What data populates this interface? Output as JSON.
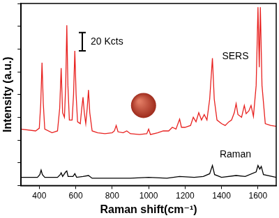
{
  "chart_data": {
    "type": "line",
    "x_label": "Raman shift(cm⁻¹)",
    "y_label": "Intensity (a.u.)",
    "xlim": [
      300,
      1700
    ],
    "xticks": [
      400,
      600,
      800,
      1000,
      1200,
      1400,
      1600
    ],
    "ylim": [
      0,
      200
    ],
    "yticks": [
      0,
      25,
      50,
      75,
      100,
      125,
      150,
      175,
      200
    ],
    "tick_labels": "x",
    "grid": false,
    "scale_bar": {
      "label": "20 Kcts",
      "value": 20
    },
    "series": [
      {
        "name": "SERS",
        "color": "#e8211f",
        "x": [
          300,
          380,
          400,
          408,
          415,
          422,
          430,
          470,
          500,
          512,
          520,
          528,
          538,
          545,
          551,
          557,
          565,
          580,
          588,
          595,
          602,
          610,
          625,
          633,
          640,
          647,
          655,
          663,
          670,
          677,
          690,
          720,
          760,
          800,
          812,
          822,
          832,
          860,
          880,
          900,
          950,
          990,
          1000,
          1010,
          1050,
          1080,
          1110,
          1130,
          1150,
          1170,
          1180,
          1200,
          1230,
          1245,
          1260,
          1275,
          1290,
          1305,
          1320,
          1335,
          1350,
          1360,
          1375,
          1400,
          1420,
          1440,
          1455,
          1470,
          1480,
          1490,
          1510,
          1525,
          1535,
          1550,
          1562,
          1575,
          1590,
          1600,
          1607,
          1613,
          1622,
          1640,
          1670,
          1700
        ],
        "values": [
          62,
          60,
          63,
          90,
          135,
          90,
          62,
          58,
          60,
          85,
          129,
          80,
          75,
          110,
          176,
          110,
          72,
          72,
          100,
          148,
          100,
          70,
          68,
          85,
          97,
          80,
          68,
          85,
          105,
          80,
          60,
          58,
          57,
          58,
          60,
          66,
          59,
          58,
          60,
          57,
          56,
          57,
          62,
          56,
          58,
          60,
          60,
          64,
          62,
          73,
          64,
          64,
          66,
          75,
          70,
          80,
          72,
          78,
          72,
          95,
          140,
          95,
          72,
          68,
          66,
          70,
          72,
          80,
          90,
          78,
          75,
          88,
          79,
          82,
          88,
          76,
          110,
          196,
          130,
          196,
          110,
          68,
          66,
          65
        ]
      },
      {
        "name": "Raman",
        "color": "#000000",
        "x": [
          300,
          390,
          403,
          410,
          417,
          430,
          500,
          515,
          520,
          528,
          545,
          551,
          558,
          585,
          595,
          605,
          640,
          670,
          690,
          800,
          900,
          1000,
          1100,
          1170,
          1250,
          1300,
          1335,
          1350,
          1362,
          1400,
          1480,
          1530,
          1590,
          1600,
          1610,
          1618,
          1630,
          1700
        ],
        "values": [
          9,
          9,
          12,
          17,
          12,
          9,
          9,
          12,
          14,
          10,
          15,
          16,
          10,
          10,
          13,
          9,
          10,
          11,
          8,
          8,
          8,
          9,
          8,
          10,
          9,
          10,
          13,
          22,
          12,
          9,
          11,
          10,
          15,
          22,
          18,
          21,
          12,
          9
        ]
      }
    ]
  }
}
